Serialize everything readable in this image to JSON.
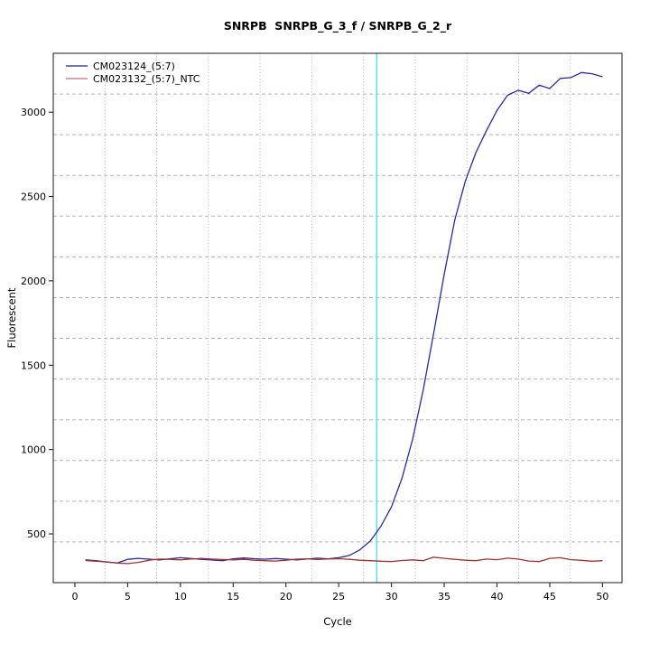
{
  "chart_data": {
    "type": "line",
    "title": "SNRPB  SNRPB_G_3_f / SNRPB_G_2_r",
    "xlabel": "Cycle",
    "ylabel": "Fluorescent",
    "xlim": [
      -2.05,
      51.85
    ],
    "ylim": [
      211,
      3349
    ],
    "x_ticks": [
      0,
      5,
      10,
      15,
      20,
      25,
      30,
      35,
      40,
      45,
      50
    ],
    "y_ticks": [
      500,
      1000,
      1500,
      2000,
      2500,
      3000
    ],
    "grid": "on",
    "grid_nx": 11,
    "grid_ny": 13,
    "legend_position": "top-left",
    "ct_marker": {
      "cycle": 28.6,
      "color": "#63E3EC"
    },
    "x": [
      1,
      2,
      3,
      4,
      5,
      6,
      7,
      8,
      9,
      10,
      11,
      12,
      13,
      14,
      15,
      16,
      17,
      18,
      19,
      20,
      21,
      22,
      23,
      24,
      25,
      26,
      27,
      28,
      29,
      30,
      31,
      32,
      33,
      34,
      35,
      36,
      37,
      38,
      39,
      40,
      41,
      42,
      43,
      44,
      45,
      46,
      47,
      48,
      49,
      50
    ],
    "series": [
      {
        "name": "CM023124_(5:7)",
        "color": "#2B2B9B",
        "legend_color": "#4646A8",
        "values": [
          346,
          341,
          333,
          328,
          349,
          355,
          350,
          346,
          352,
          359,
          354,
          349,
          345,
          341,
          352,
          357,
          353,
          350,
          354,
          350,
          346,
          351,
          356,
          352,
          359,
          372,
          405,
          458,
          545,
          660,
          830,
          1060,
          1350,
          1690,
          2040,
          2360,
          2590,
          2760,
          2890,
          3010,
          3100,
          3130,
          3112,
          3160,
          3140,
          3200,
          3205,
          3235,
          3228,
          3210
        ]
      },
      {
        "name": "CM023132_(5:7)_NTC",
        "color": "#A03434",
        "legend_color": "#CD8585",
        "values": [
          342,
          338,
          334,
          327,
          324,
          331,
          344,
          351,
          349,
          346,
          351,
          355,
          351,
          348,
          346,
          349,
          344,
          341,
          339,
          344,
          350,
          352,
          348,
          351,
          353,
          349,
          344,
          341,
          338,
          336,
          342,
          346,
          341,
          362,
          355,
          349,
          344,
          341,
          351,
          347,
          356,
          351,
          339,
          336,
          355,
          359,
          347,
          343,
          338,
          341
        ]
      }
    ]
  }
}
